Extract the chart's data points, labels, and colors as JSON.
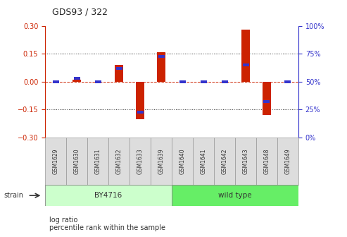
{
  "title": "GDS93 / 322",
  "samples": [
    "GSM1629",
    "GSM1630",
    "GSM1631",
    "GSM1632",
    "GSM1633",
    "GSM1639",
    "GSM1640",
    "GSM1641",
    "GSM1642",
    "GSM1643",
    "GSM1648",
    "GSM1649"
  ],
  "log_ratio": [
    0.0,
    0.01,
    0.0,
    0.09,
    -0.2,
    0.16,
    0.0,
    0.0,
    0.0,
    0.28,
    -0.18,
    0.0
  ],
  "percentile_rank": [
    50,
    53,
    50,
    62,
    23,
    73,
    50,
    50,
    50,
    65,
    32,
    50
  ],
  "ylim_left": [
    -0.3,
    0.3
  ],
  "ylim_right": [
    0,
    100
  ],
  "yticks_left": [
    -0.3,
    -0.15,
    0.0,
    0.15,
    0.3
  ],
  "yticks_right": [
    0,
    25,
    50,
    75,
    100
  ],
  "strain_groups": [
    {
      "label": "BY4716",
      "start": 0,
      "end": 5,
      "color": "#CCFFCC"
    },
    {
      "label": "wild type",
      "start": 6,
      "end": 11,
      "color": "#66EE66"
    }
  ],
  "bar_color_log": "#CC2200",
  "bar_color_pct": "#3333CC",
  "bar_width": 0.4,
  "pct_bar_width": 0.3,
  "background_sample": "#DDDDDD",
  "left_axis_color": "#CC2200",
  "right_axis_color": "#3333CC",
  "zero_line_color": "#CC2200",
  "dotted_line_color": "#333333",
  "legend_items": [
    "log ratio",
    "percentile rank within the sample"
  ],
  "strain_label": "strain"
}
